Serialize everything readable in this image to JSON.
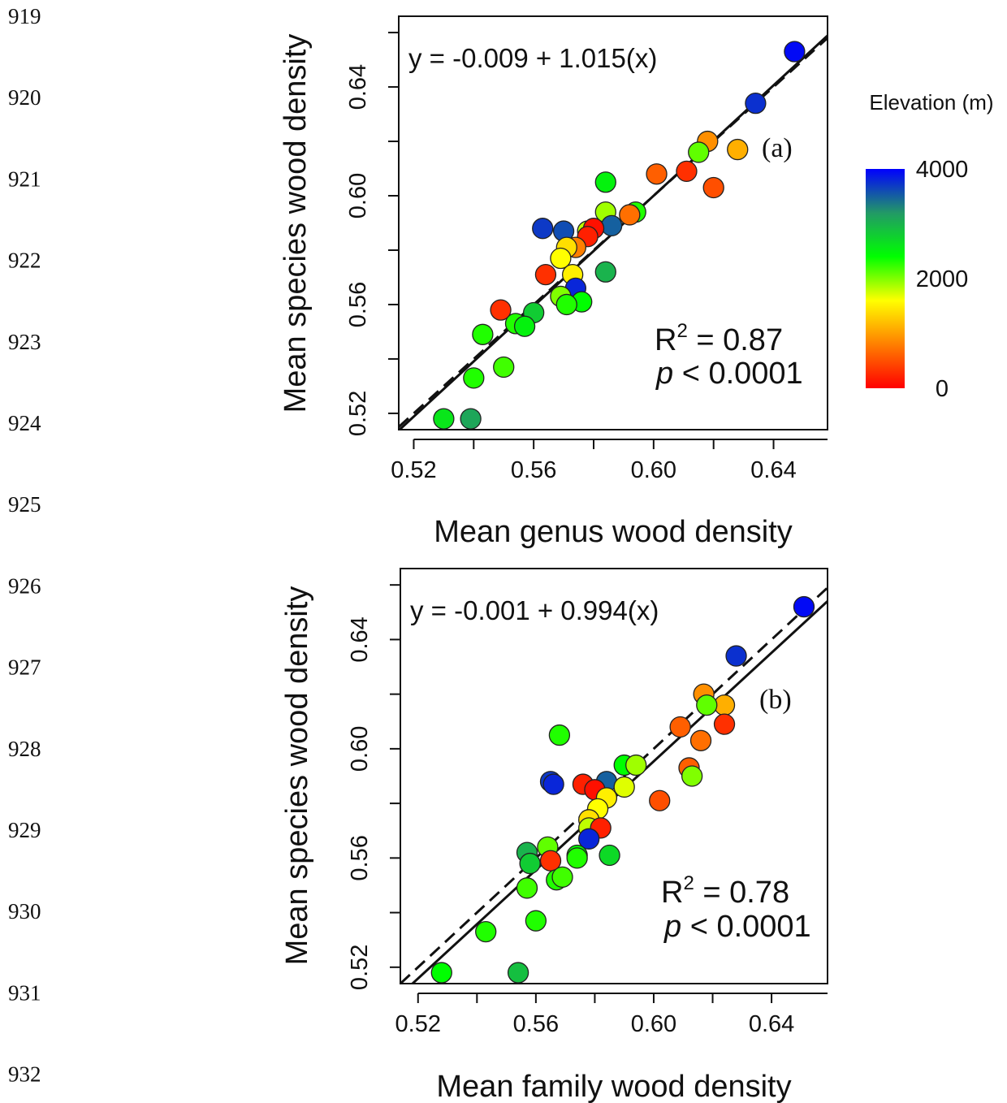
{
  "line_numbers": [
    "919",
    "920",
    "921",
    "922",
    "923",
    "924",
    "925",
    "926",
    "927",
    "928",
    "929",
    "930",
    "931",
    "932"
  ],
  "legend": {
    "title": "Elevation (m)",
    "ticks": [
      {
        "value": 4000,
        "label": "4000"
      },
      {
        "value": 2000,
        "label": "2000"
      },
      {
        "value": 0,
        "label": "0"
      }
    ],
    "range": [
      0,
      4000
    ],
    "colors": [
      "#ff0000",
      "#ff7f00",
      "#ffff00",
      "#00ff00",
      "#229966",
      "#0000ff"
    ]
  },
  "chart_data": [
    {
      "type": "scatter",
      "panel_label": "(a)",
      "xlabel": "Mean genus wood density",
      "ylabel": "Mean species wood density",
      "xlim": [
        0.515,
        0.658
      ],
      "ylim": [
        0.514,
        0.666
      ],
      "xticks": [
        0.52,
        0.56,
        0.6,
        0.64
      ],
      "yticks": [
        0.52,
        0.56,
        0.6,
        0.64
      ],
      "xtick_labels": [
        "0.52",
        "0.56",
        "0.60",
        "0.64"
      ],
      "ytick_labels": [
        "0.52",
        "0.56",
        "0.60",
        "0.64"
      ],
      "equation": "y = -0.009 + 1.015(x)",
      "r2_text": "R",
      "r2_sup": "2",
      "r2_value": " = 0.87",
      "p_italic": "p",
      "p_value": " < 0.0001",
      "fit_line": {
        "intercept": -0.009,
        "slope": 1.015
      },
      "identity_line": true,
      "points": [
        {
          "x": 0.647,
          "y": 0.653,
          "elev": 3950
        },
        {
          "x": 0.634,
          "y": 0.634,
          "elev": 3750
        },
        {
          "x": 0.618,
          "y": 0.62,
          "elev": 900
        },
        {
          "x": 0.615,
          "y": 0.616,
          "elev": 2100
        },
        {
          "x": 0.628,
          "y": 0.617,
          "elev": 1100
        },
        {
          "x": 0.611,
          "y": 0.609,
          "elev": 300
        },
        {
          "x": 0.601,
          "y": 0.608,
          "elev": 600
        },
        {
          "x": 0.62,
          "y": 0.603,
          "elev": 500
        },
        {
          "x": 0.584,
          "y": 0.605,
          "elev": 2500
        },
        {
          "x": 0.594,
          "y": 0.594,
          "elev": 2300
        },
        {
          "x": 0.592,
          "y": 0.593,
          "elev": 700
        },
        {
          "x": 0.584,
          "y": 0.594,
          "elev": 1900
        },
        {
          "x": 0.586,
          "y": 0.589,
          "elev": 3500
        },
        {
          "x": 0.563,
          "y": 0.588,
          "elev": 3700
        },
        {
          "x": 0.57,
          "y": 0.587,
          "elev": 3600
        },
        {
          "x": 0.578,
          "y": 0.587,
          "elev": 1800
        },
        {
          "x": 0.58,
          "y": 0.588,
          "elev": 100
        },
        {
          "x": 0.578,
          "y": 0.585,
          "elev": 200
        },
        {
          "x": 0.574,
          "y": 0.581,
          "elev": 800
        },
        {
          "x": 0.571,
          "y": 0.581,
          "elev": 1400
        },
        {
          "x": 0.569,
          "y": 0.577,
          "elev": 1600
        },
        {
          "x": 0.573,
          "y": 0.571,
          "elev": 1500
        },
        {
          "x": 0.584,
          "y": 0.572,
          "elev": 3000
        },
        {
          "x": 0.564,
          "y": 0.571,
          "elev": 300
        },
        {
          "x": 0.574,
          "y": 0.566,
          "elev": 3800
        },
        {
          "x": 0.569,
          "y": 0.563,
          "elev": 2000
        },
        {
          "x": 0.576,
          "y": 0.561,
          "elev": 2400
        },
        {
          "x": 0.571,
          "y": 0.56,
          "elev": 2300
        },
        {
          "x": 0.56,
          "y": 0.557,
          "elev": 2800
        },
        {
          "x": 0.549,
          "y": 0.558,
          "elev": 300
        },
        {
          "x": 0.554,
          "y": 0.553,
          "elev": 2300
        },
        {
          "x": 0.557,
          "y": 0.552,
          "elev": 2500
        },
        {
          "x": 0.543,
          "y": 0.549,
          "elev": 2300
        },
        {
          "x": 0.55,
          "y": 0.537,
          "elev": 2200
        },
        {
          "x": 0.54,
          "y": 0.533,
          "elev": 2300
        },
        {
          "x": 0.53,
          "y": 0.518,
          "elev": 2600
        },
        {
          "x": 0.539,
          "y": 0.518,
          "elev": 3100
        }
      ]
    },
    {
      "type": "scatter",
      "panel_label": "(b)",
      "xlabel": "Mean family wood density",
      "ylabel": "Mean species wood density",
      "xlim": [
        0.514,
        0.659
      ],
      "ylim": [
        0.514,
        0.666
      ],
      "xticks": [
        0.52,
        0.56,
        0.6,
        0.64
      ],
      "yticks": [
        0.52,
        0.56,
        0.6,
        0.64
      ],
      "xtick_labels": [
        "0.52",
        "0.56",
        "0.60",
        "0.64"
      ],
      "ytick_labels": [
        "0.52",
        "0.56",
        "0.60",
        "0.64"
      ],
      "equation": "y = -0.001 + 0.994(x)",
      "r2_text": "R",
      "r2_sup": "2",
      "r2_value": " = 0.78",
      "p_italic": "p",
      "p_value": " < 0.0001",
      "fit_line": {
        "intercept": -0.001,
        "slope": 0.994
      },
      "identity_line": true,
      "points": [
        {
          "x": 0.651,
          "y": 0.652,
          "elev": 3950
        },
        {
          "x": 0.628,
          "y": 0.634,
          "elev": 3750
        },
        {
          "x": 0.617,
          "y": 0.62,
          "elev": 900
        },
        {
          "x": 0.624,
          "y": 0.616,
          "elev": 1100
        },
        {
          "x": 0.618,
          "y": 0.616,
          "elev": 2100
        },
        {
          "x": 0.624,
          "y": 0.609,
          "elev": 300
        },
        {
          "x": 0.609,
          "y": 0.608,
          "elev": 600
        },
        {
          "x": 0.616,
          "y": 0.603,
          "elev": 700
        },
        {
          "x": 0.568,
          "y": 0.605,
          "elev": 2300
        },
        {
          "x": 0.59,
          "y": 0.594,
          "elev": 2400
        },
        {
          "x": 0.594,
          "y": 0.594,
          "elev": 1900
        },
        {
          "x": 0.612,
          "y": 0.593,
          "elev": 600
        },
        {
          "x": 0.613,
          "y": 0.59,
          "elev": 2000
        },
        {
          "x": 0.565,
          "y": 0.588,
          "elev": 3700
        },
        {
          "x": 0.566,
          "y": 0.587,
          "elev": 3800
        },
        {
          "x": 0.584,
          "y": 0.588,
          "elev": 3500
        },
        {
          "x": 0.576,
          "y": 0.587,
          "elev": 200
        },
        {
          "x": 0.58,
          "y": 0.585,
          "elev": 100
        },
        {
          "x": 0.59,
          "y": 0.586,
          "elev": 1700
        },
        {
          "x": 0.584,
          "y": 0.582,
          "elev": 1500
        },
        {
          "x": 0.602,
          "y": 0.581,
          "elev": 500
        },
        {
          "x": 0.581,
          "y": 0.578,
          "elev": 1600
        },
        {
          "x": 0.578,
          "y": 0.574,
          "elev": 1400
        },
        {
          "x": 0.578,
          "y": 0.571,
          "elev": 1800
        },
        {
          "x": 0.582,
          "y": 0.571,
          "elev": 200
        },
        {
          "x": 0.578,
          "y": 0.567,
          "elev": 3800
        },
        {
          "x": 0.564,
          "y": 0.564,
          "elev": 2100
        },
        {
          "x": 0.557,
          "y": 0.562,
          "elev": 3000
        },
        {
          "x": 0.565,
          "y": 0.559,
          "elev": 300
        },
        {
          "x": 0.558,
          "y": 0.558,
          "elev": 2800
        },
        {
          "x": 0.574,
          "y": 0.561,
          "elev": 2400
        },
        {
          "x": 0.574,
          "y": 0.56,
          "elev": 2300
        },
        {
          "x": 0.585,
          "y": 0.561,
          "elev": 2700
        },
        {
          "x": 0.567,
          "y": 0.552,
          "elev": 2300
        },
        {
          "x": 0.569,
          "y": 0.553,
          "elev": 2200
        },
        {
          "x": 0.557,
          "y": 0.549,
          "elev": 2200
        },
        {
          "x": 0.56,
          "y": 0.537,
          "elev": 2300
        },
        {
          "x": 0.543,
          "y": 0.533,
          "elev": 2300
        },
        {
          "x": 0.528,
          "y": 0.518,
          "elev": 2400
        },
        {
          "x": 0.554,
          "y": 0.518,
          "elev": 2900
        }
      ]
    }
  ]
}
